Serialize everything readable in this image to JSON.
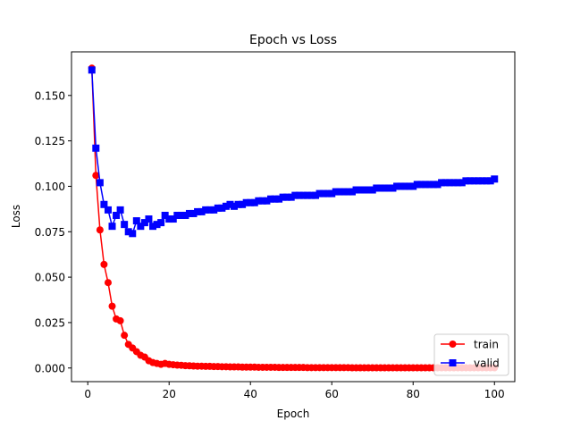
{
  "chart_data": {
    "type": "line",
    "title": "Epoch vs Loss",
    "xlabel": "Epoch",
    "ylabel": "Loss",
    "xlim": [
      -4,
      105
    ],
    "ylim": [
      -0.0075,
      0.174
    ],
    "xticks": [
      {
        "value": 0,
        "label": "0"
      },
      {
        "value": 20,
        "label": "20"
      },
      {
        "value": 40,
        "label": "40"
      },
      {
        "value": 60,
        "label": "60"
      },
      {
        "value": 80,
        "label": "80"
      },
      {
        "value": 100,
        "label": "100"
      }
    ],
    "yticks": [
      {
        "value": 0.0,
        "label": "0.000"
      },
      {
        "value": 0.025,
        "label": "0.025"
      },
      {
        "value": 0.05,
        "label": "0.050"
      },
      {
        "value": 0.075,
        "label": "0.075"
      },
      {
        "value": 0.1,
        "label": "0.100"
      },
      {
        "value": 0.125,
        "label": "0.125"
      },
      {
        "value": 0.15,
        "label": "0.150"
      }
    ],
    "legend": "lower right",
    "grid": false,
    "x": [
      1,
      2,
      3,
      4,
      5,
      6,
      7,
      8,
      9,
      10,
      11,
      12,
      13,
      14,
      15,
      16,
      17,
      18,
      19,
      20,
      21,
      22,
      23,
      24,
      25,
      26,
      27,
      28,
      29,
      30,
      31,
      32,
      33,
      34,
      35,
      36,
      37,
      38,
      39,
      40,
      41,
      42,
      43,
      44,
      45,
      46,
      47,
      48,
      49,
      50,
      51,
      52,
      53,
      54,
      55,
      56,
      57,
      58,
      59,
      60,
      61,
      62,
      63,
      64,
      65,
      66,
      67,
      68,
      69,
      70,
      71,
      72,
      73,
      74,
      75,
      76,
      77,
      78,
      79,
      80,
      81,
      82,
      83,
      84,
      85,
      86,
      87,
      88,
      89,
      90,
      91,
      92,
      93,
      94,
      95,
      96,
      97,
      98,
      99,
      100
    ],
    "series": [
      {
        "name": "train",
        "color": "#ff0000",
        "marker": "circle",
        "values": [
          0.165,
          0.106,
          0.076,
          0.057,
          0.047,
          0.034,
          0.027,
          0.026,
          0.018,
          0.013,
          0.011,
          0.009,
          0.007,
          0.006,
          0.004,
          0.003,
          0.0025,
          0.002,
          0.0025,
          0.002,
          0.0018,
          0.0016,
          0.0015,
          0.0013,
          0.0012,
          0.0011,
          0.001,
          0.001,
          0.0009,
          0.0009,
          0.0008,
          0.0008,
          0.0007,
          0.0007,
          0.0006,
          0.0006,
          0.0006,
          0.0005,
          0.0005,
          0.0005,
          0.0005,
          0.0004,
          0.0004,
          0.0004,
          0.0004,
          0.0004,
          0.0003,
          0.0003,
          0.0003,
          0.0003,
          0.0003,
          0.0003,
          0.0003,
          0.0002,
          0.0002,
          0.0002,
          0.0002,
          0.0002,
          0.0002,
          0.0002,
          0.0002,
          0.0002,
          0.0002,
          0.0002,
          0.0001,
          0.0001,
          0.0001,
          0.0001,
          0.0001,
          0.0001,
          0.0001,
          0.0001,
          0.0001,
          0.0001,
          0.0001,
          0.0001,
          0.0001,
          0.0001,
          0.0001,
          0.0001,
          0.0001,
          0.0001,
          0.0001,
          0.0001,
          0.0001,
          0.0001,
          0.0001,
          0.0001,
          0.0001,
          0.0001,
          0.0001,
          0.0001,
          0.0001,
          0.0001,
          0.0001,
          0.0001,
          0.0001,
          0.0001,
          0.0001,
          0.0001
        ]
      },
      {
        "name": "valid",
        "color": "#0000ff",
        "marker": "square",
        "values": [
          0.164,
          0.121,
          0.102,
          0.09,
          0.087,
          0.078,
          0.084,
          0.087,
          0.079,
          0.075,
          0.074,
          0.081,
          0.078,
          0.08,
          0.082,
          0.078,
          0.079,
          0.08,
          0.084,
          0.082,
          0.082,
          0.084,
          0.084,
          0.084,
          0.085,
          0.085,
          0.086,
          0.086,
          0.087,
          0.087,
          0.087,
          0.088,
          0.088,
          0.089,
          0.09,
          0.089,
          0.09,
          0.09,
          0.091,
          0.091,
          0.091,
          0.092,
          0.092,
          0.092,
          0.093,
          0.093,
          0.093,
          0.094,
          0.094,
          0.094,
          0.095,
          0.095,
          0.095,
          0.095,
          0.095,
          0.095,
          0.096,
          0.096,
          0.096,
          0.096,
          0.097,
          0.097,
          0.097,
          0.097,
          0.097,
          0.098,
          0.098,
          0.098,
          0.098,
          0.098,
          0.099,
          0.099,
          0.099,
          0.099,
          0.099,
          0.1,
          0.1,
          0.1,
          0.1,
          0.1,
          0.101,
          0.101,
          0.101,
          0.101,
          0.101,
          0.101,
          0.102,
          0.102,
          0.102,
          0.102,
          0.102,
          0.102,
          0.103,
          0.103,
          0.103,
          0.103,
          0.103,
          0.103,
          0.103,
          0.104
        ]
      }
    ]
  }
}
